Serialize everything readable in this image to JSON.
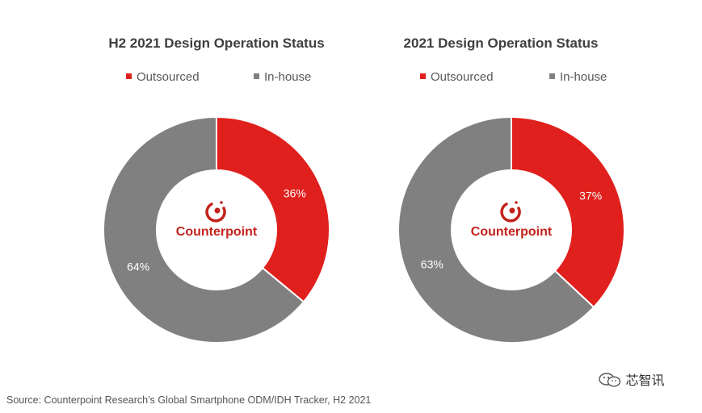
{
  "colors": {
    "outsourced": "#e0201d",
    "inhouse": "#808080",
    "brand": "#c3231d"
  },
  "chart_data": [
    {
      "type": "pie",
      "title": "H2 2021 Design Operation Status",
      "legend": [
        "Outsourced",
        "In-house"
      ],
      "series": [
        {
          "name": "Outsourced",
          "value": 36,
          "label": "36%"
        },
        {
          "name": "In-house",
          "value": 64,
          "label": "64%"
        }
      ],
      "center_logo": "Counterpoint"
    },
    {
      "type": "pie",
      "title": "2021 Design Operation Status",
      "legend": [
        "Outsourced",
        "In-house"
      ],
      "series": [
        {
          "name": "Outsourced",
          "value": 37,
          "label": "37%"
        },
        {
          "name": "In-house",
          "value": 63,
          "label": "63%"
        }
      ],
      "center_logo": "Counterpoint"
    }
  ],
  "source": "Source: Counterpoint Research’s Global Smartphone ODM/IDH Tracker, H2 2021",
  "watermark": {
    "icon": "wechat-icon",
    "text": "芯智讯"
  }
}
